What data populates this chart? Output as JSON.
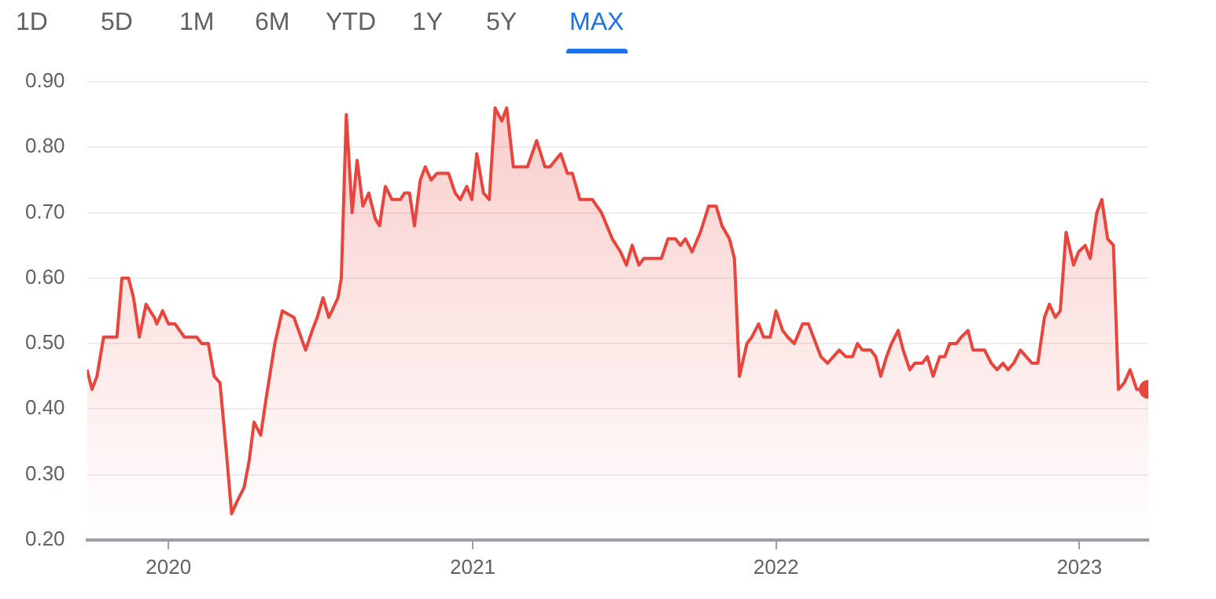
{
  "chart_data": {
    "type": "area",
    "annotations": [
      "1D",
      "5D",
      "1M",
      "6M",
      "YTD",
      "1Y",
      "5Y",
      "MAX"
    ],
    "x": [
      "2019-09-25",
      "2019-10-01",
      "2019-10-07",
      "2019-10-15",
      "2019-10-31",
      "2019-11-06",
      "2019-11-14",
      "2019-11-20",
      "2019-11-27",
      "2019-12-05",
      "2019-12-15",
      "2019-12-18",
      "2019-12-25",
      "2020-01-01",
      "2020-01-09",
      "2020-01-20",
      "2020-02-04",
      "2020-02-10",
      "2020-02-18",
      "2020-02-25",
      "2020-03-03",
      "2020-03-11",
      "2020-03-17",
      "2020-03-24",
      "2020-04-01",
      "2020-04-07",
      "2020-04-13",
      "2020-04-21",
      "2020-04-28",
      "2020-05-08",
      "2020-05-17",
      "2020-05-31",
      "2020-06-14",
      "2020-06-22",
      "2020-06-28",
      "2020-07-05",
      "2020-07-12",
      "2020-07-23",
      "2020-07-27",
      "2020-08-02",
      "2020-08-09",
      "2020-08-15",
      "2020-08-22",
      "2020-08-29",
      "2020-09-06",
      "2020-09-11",
      "2020-09-18",
      "2020-09-26",
      "2020-10-06",
      "2020-10-11",
      "2020-10-17",
      "2020-10-23",
      "2020-10-30",
      "2020-11-05",
      "2020-11-12",
      "2020-11-19",
      "2020-12-03",
      "2020-12-11",
      "2020-12-17",
      "2020-12-25",
      "2020-12-31",
      "2021-01-06",
      "2021-01-14",
      "2021-01-21",
      "2021-01-28",
      "2021-02-05",
      "2021-02-11",
      "2021-02-19",
      "2021-03-08",
      "2021-03-19",
      "2021-03-29",
      "2021-04-04",
      "2021-04-17",
      "2021-04-25",
      "2021-05-01",
      "2021-05-10",
      "2021-05-25",
      "2021-06-05",
      "2021-06-18",
      "2021-06-28",
      "2021-07-05",
      "2021-07-12",
      "2021-07-20",
      "2021-07-26",
      "2021-08-16",
      "2021-08-24",
      "2021-09-02",
      "2021-09-08",
      "2021-09-14",
      "2021-09-22",
      "2021-10-02",
      "2021-10-12",
      "2021-10-21",
      "2021-10-28",
      "2021-11-06",
      "2021-11-12",
      "2021-11-18",
      "2021-11-27",
      "2021-12-03",
      "2021-12-11",
      "2021-12-17",
      "2021-12-25",
      "2022-01-01",
      "2022-01-09",
      "2022-01-15",
      "2022-01-23",
      "2022-02-02",
      "2022-02-09",
      "2022-02-24",
      "2022-03-04",
      "2022-03-18",
      "2022-03-26",
      "2022-04-03",
      "2022-04-09",
      "2022-04-15",
      "2022-04-25",
      "2022-05-01",
      "2022-05-07",
      "2022-05-14",
      "2022-05-20",
      "2022-05-28",
      "2022-06-03",
      "2022-06-11",
      "2022-06-17",
      "2022-06-26",
      "2022-07-02",
      "2022-07-09",
      "2022-07-17",
      "2022-07-23",
      "2022-07-29",
      "2022-08-06",
      "2022-08-12",
      "2022-08-20",
      "2022-08-26",
      "2022-09-09",
      "2022-09-17",
      "2022-09-24",
      "2022-10-01",
      "2022-10-07",
      "2022-10-14",
      "2022-10-22",
      "2022-10-29",
      "2022-11-05",
      "2022-11-12",
      "2022-11-20",
      "2022-11-26",
      "2022-12-03",
      "2022-12-09",
      "2022-12-16",
      "2022-12-25",
      "2022-12-31",
      "2023-01-08",
      "2023-01-14",
      "2023-01-22",
      "2023-01-28",
      "2023-02-04",
      "2023-02-11",
      "2023-02-17",
      "2023-02-24",
      "2023-03-03",
      "2023-03-11",
      "2023-03-25"
    ],
    "series": [
      {
        "color": "#e8453c",
        "values": [
          0.46,
          0.43,
          0.45,
          0.51,
          0.51,
          0.6,
          0.6,
          0.57,
          0.51,
          0.56,
          0.54,
          0.53,
          0.55,
          0.53,
          0.53,
          0.51,
          0.51,
          0.5,
          0.5,
          0.45,
          0.44,
          0.33,
          0.24,
          0.26,
          0.28,
          0.32,
          0.38,
          0.36,
          0.42,
          0.5,
          0.55,
          0.54,
          0.49,
          0.52,
          0.54,
          0.57,
          0.54,
          0.57,
          0.6,
          0.85,
          0.7,
          0.78,
          0.71,
          0.73,
          0.69,
          0.68,
          0.74,
          0.72,
          0.72,
          0.73,
          0.73,
          0.68,
          0.75,
          0.77,
          0.75,
          0.76,
          0.76,
          0.73,
          0.72,
          0.74,
          0.72,
          0.79,
          0.73,
          0.72,
          0.86,
          0.84,
          0.86,
          0.77,
          0.77,
          0.81,
          0.77,
          0.77,
          0.79,
          0.76,
          0.76,
          0.72,
          0.72,
          0.7,
          0.66,
          0.64,
          0.62,
          0.65,
          0.62,
          0.63,
          0.63,
          0.66,
          0.66,
          0.65,
          0.66,
          0.64,
          0.67,
          0.71,
          0.71,
          0.68,
          0.66,
          0.63,
          0.45,
          0.5,
          0.51,
          0.53,
          0.51,
          0.51,
          0.55,
          0.52,
          0.51,
          0.5,
          0.53,
          0.53,
          0.48,
          0.47,
          0.49,
          0.48,
          0.48,
          0.5,
          0.49,
          0.49,
          0.48,
          0.45,
          0.48,
          0.5,
          0.52,
          0.49,
          0.46,
          0.47,
          0.47,
          0.48,
          0.45,
          0.48,
          0.48,
          0.5,
          0.5,
          0.51,
          0.52,
          0.49,
          0.49,
          0.47,
          0.46,
          0.47,
          0.46,
          0.47,
          0.49,
          0.48,
          0.47,
          0.47,
          0.54,
          0.56,
          0.54,
          0.55,
          0.67,
          0.62,
          0.64,
          0.65,
          0.63,
          0.7,
          0.72,
          0.66,
          0.65,
          0.43,
          0.44,
          0.46,
          0.43,
          0.43
        ]
      }
    ],
    "xlim": [
      "2019-09-25",
      "2023-03-25"
    ],
    "xticks": [
      {
        "value": "2020-01-01",
        "label": "2020"
      },
      {
        "value": "2021-01-01",
        "label": "2021"
      },
      {
        "value": "2022-01-01",
        "label": "2022"
      },
      {
        "value": "2023-01-01",
        "label": "2023"
      }
    ],
    "ylim": [
      0.2,
      0.9
    ],
    "yticks": [
      {
        "value": 0.2,
        "label": "0.20"
      },
      {
        "value": 0.3,
        "label": "0.30"
      },
      {
        "value": 0.4,
        "label": "0.40"
      },
      {
        "value": 0.5,
        "label": "0.50"
      },
      {
        "value": 0.6,
        "label": "0.60"
      },
      {
        "value": 0.7,
        "label": "0.70"
      },
      {
        "value": 0.8,
        "label": "0.80"
      },
      {
        "value": 0.9,
        "label": "0.90"
      }
    ],
    "grid": "y"
  }
}
